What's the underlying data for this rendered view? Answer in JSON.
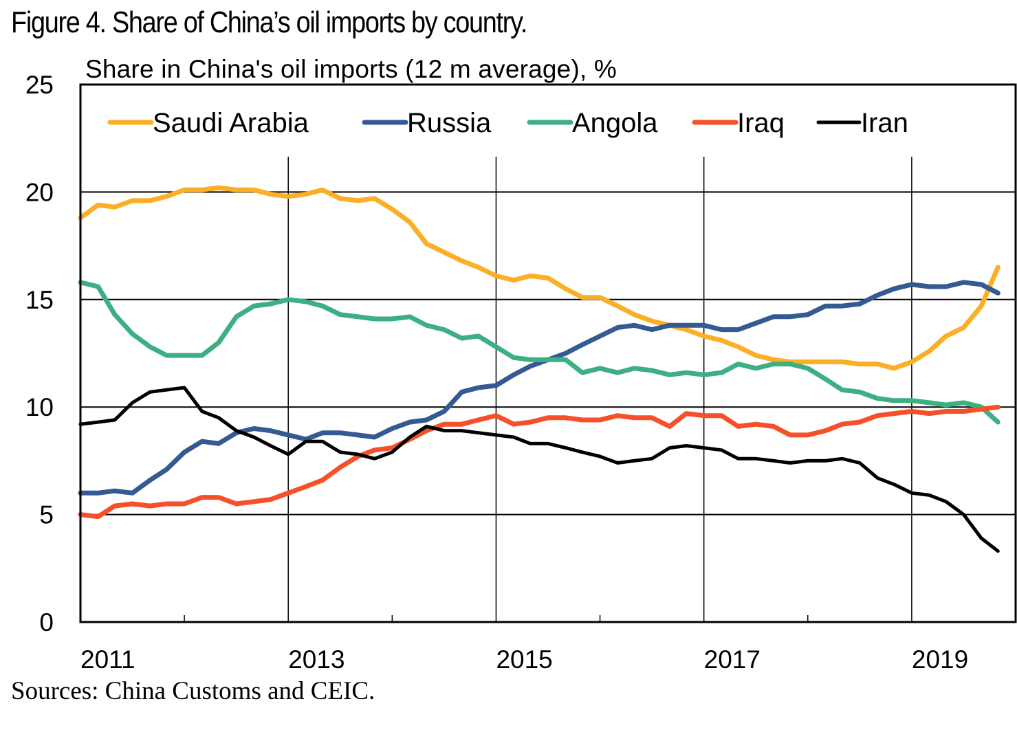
{
  "figure": {
    "title": "Figure 4. Share of China’s oil imports by country.",
    "source": "Sources: China Customs and CEIC."
  },
  "chart_data": {
    "type": "line",
    "title": "Share in China's oil imports (12 m average),  %",
    "xlabel": "",
    "ylabel": "%",
    "ylim": [
      0,
      25
    ],
    "xlim": [
      2011.0,
      2020.0
    ],
    "yticks": [
      "0",
      "5",
      "10",
      "15",
      "20",
      "25"
    ],
    "xticks": [
      "2011",
      "2013",
      "2015",
      "2017",
      "2019"
    ],
    "grid": true,
    "legend_position": "top",
    "x": [
      2011.0,
      2011.17,
      2011.33,
      2011.5,
      2011.67,
      2011.83,
      2012.0,
      2012.17,
      2012.33,
      2012.5,
      2012.67,
      2012.83,
      2013.0,
      2013.17,
      2013.33,
      2013.5,
      2013.67,
      2013.83,
      2014.0,
      2014.17,
      2014.33,
      2014.5,
      2014.67,
      2014.83,
      2015.0,
      2015.17,
      2015.33,
      2015.5,
      2015.67,
      2015.83,
      2016.0,
      2016.17,
      2016.33,
      2016.5,
      2016.67,
      2016.83,
      2017.0,
      2017.17,
      2017.33,
      2017.5,
      2017.67,
      2017.83,
      2018.0,
      2018.17,
      2018.33,
      2018.5,
      2018.67,
      2018.83,
      2019.0,
      2019.17,
      2019.33,
      2019.5,
      2019.67,
      2019.83
    ],
    "series": [
      {
        "name": "Saudi Arabia",
        "color": "#FBAF27",
        "values": [
          18.8,
          19.4,
          19.3,
          19.6,
          19.6,
          19.8,
          20.1,
          20.1,
          20.2,
          20.1,
          20.1,
          19.9,
          19.8,
          19.9,
          20.1,
          19.7,
          19.6,
          19.7,
          19.2,
          18.6,
          17.6,
          17.2,
          16.8,
          16.5,
          16.1,
          15.9,
          16.1,
          16.0,
          15.5,
          15.1,
          15.1,
          14.7,
          14.3,
          14.0,
          13.8,
          13.6,
          13.3,
          13.1,
          12.8,
          12.4,
          12.2,
          12.1,
          12.1,
          12.1,
          12.1,
          12.0,
          12.0,
          11.8,
          12.1,
          12.6,
          13.3,
          13.7,
          14.7,
          16.5
        ]
      },
      {
        "name": "Russia",
        "color": "#345A94",
        "values": [
          6.0,
          6.0,
          6.1,
          6.0,
          6.6,
          7.1,
          7.9,
          8.4,
          8.3,
          8.8,
          9.0,
          8.9,
          8.7,
          8.5,
          8.8,
          8.8,
          8.7,
          8.6,
          9.0,
          9.3,
          9.4,
          9.8,
          10.7,
          10.9,
          11.0,
          11.5,
          11.9,
          12.2,
          12.5,
          12.9,
          13.3,
          13.7,
          13.8,
          13.6,
          13.8,
          13.8,
          13.8,
          13.6,
          13.6,
          13.9,
          14.2,
          14.2,
          14.3,
          14.7,
          14.7,
          14.8,
          15.2,
          15.5,
          15.7,
          15.6,
          15.6,
          15.8,
          15.7,
          15.3
        ]
      },
      {
        "name": "Angola",
        "color": "#3EAF83",
        "values": [
          15.8,
          15.6,
          14.3,
          13.4,
          12.8,
          12.4,
          12.4,
          12.4,
          13.0,
          14.2,
          14.7,
          14.8,
          15.0,
          14.9,
          14.7,
          14.3,
          14.2,
          14.1,
          14.1,
          14.2,
          13.8,
          13.6,
          13.2,
          13.3,
          12.8,
          12.3,
          12.2,
          12.2,
          12.2,
          11.6,
          11.8,
          11.6,
          11.8,
          11.7,
          11.5,
          11.6,
          11.5,
          11.6,
          12.0,
          11.8,
          12.0,
          12.0,
          11.8,
          11.3,
          10.8,
          10.7,
          10.4,
          10.3,
          10.3,
          10.2,
          10.1,
          10.2,
          10.0,
          9.3
        ]
      },
      {
        "name": "Iraq",
        "color": "#F5502A",
        "values": [
          5.0,
          4.9,
          5.4,
          5.5,
          5.4,
          5.5,
          5.5,
          5.8,
          5.8,
          5.5,
          5.6,
          5.7,
          6.0,
          6.3,
          6.6,
          7.2,
          7.7,
          8.0,
          8.1,
          8.5,
          8.9,
          9.2,
          9.2,
          9.4,
          9.6,
          9.2,
          9.3,
          9.5,
          9.5,
          9.4,
          9.4,
          9.6,
          9.5,
          9.5,
          9.1,
          9.7,
          9.6,
          9.6,
          9.1,
          9.2,
          9.1,
          8.7,
          8.7,
          8.9,
          9.2,
          9.3,
          9.6,
          9.7,
          9.8,
          9.7,
          9.8,
          9.8,
          9.9,
          10.0
        ]
      },
      {
        "name": "Iran",
        "color": "#000000",
        "values": [
          9.2,
          9.3,
          9.4,
          10.2,
          10.7,
          10.8,
          10.9,
          9.8,
          9.5,
          8.9,
          8.6,
          8.2,
          7.8,
          8.4,
          8.4,
          7.9,
          7.8,
          7.6,
          7.9,
          8.6,
          9.1,
          8.9,
          8.9,
          8.8,
          8.7,
          8.6,
          8.3,
          8.3,
          8.1,
          7.9,
          7.7,
          7.4,
          7.5,
          7.6,
          8.1,
          8.2,
          8.1,
          8.0,
          7.6,
          7.6,
          7.5,
          7.4,
          7.5,
          7.5,
          7.6,
          7.4,
          6.7,
          6.4,
          6.0,
          5.9,
          5.6,
          5.0,
          3.9,
          3.3
        ]
      }
    ]
  }
}
